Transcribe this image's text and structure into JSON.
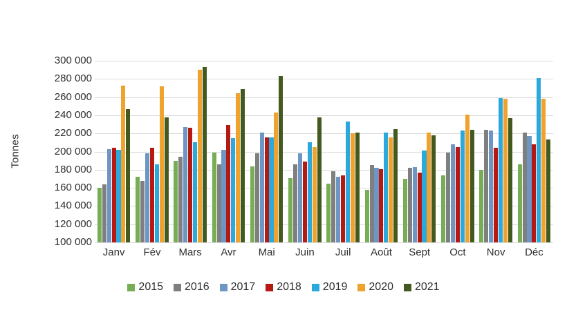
{
  "chart_data": {
    "type": "bar",
    "title": "",
    "ylabel": "Tonnes",
    "xlabel": "",
    "grid": true,
    "legend_position": "bottom",
    "ylim": [
      100000,
      300000
    ],
    "ytick_step": 20000,
    "yticks": [
      "300 000",
      "280 000",
      "260 000",
      "240 000",
      "220 000",
      "200 000",
      "180 000",
      "160 000",
      "140 000",
      "120 000",
      "100 000"
    ],
    "categories": [
      "Janv",
      "Fév",
      "Mars",
      "Avr",
      "Mai",
      "Juin",
      "Juil",
      "Août",
      "Sept",
      "Oct",
      "Nov",
      "Déc"
    ],
    "series": [
      {
        "name": "2015",
        "color": "#77AE55",
        "values": [
          160000,
          172000,
          190000,
          199000,
          184000,
          171000,
          165000,
          158000,
          170000,
          174000,
          180000,
          186000
        ]
      },
      {
        "name": "2016",
        "color": "#7F7F7F",
        "values": [
          164000,
          168000,
          194000,
          186000,
          198000,
          186000,
          178000,
          185000,
          182000,
          199000,
          224000,
          221000
        ]
      },
      {
        "name": "2017",
        "color": "#6E96C4",
        "values": [
          203000,
          198000,
          227000,
          202000,
          221000,
          198000,
          172000,
          182000,
          183000,
          208000,
          223000,
          217000
        ]
      },
      {
        "name": "2018",
        "color": "#B61812",
        "values": [
          204000,
          204000,
          226000,
          229000,
          216000,
          189000,
          174000,
          181000,
          177000,
          205000,
          204000,
          208000
        ]
      },
      {
        "name": "2019",
        "color": "#2BA9DF",
        "values": [
          202000,
          186000,
          210000,
          215000,
          216000,
          210000,
          233000,
          221000,
          201000,
          223000,
          259000,
          281000
        ]
      },
      {
        "name": "2020",
        "color": "#F0A22E",
        "values": [
          273000,
          272000,
          290000,
          264000,
          243000,
          205000,
          220000,
          216000,
          221000,
          241000,
          258000,
          258000
        ]
      },
      {
        "name": "2021",
        "color": "#44591E",
        "values": [
          247000,
          238000,
          293000,
          269000,
          283000,
          238000,
          221000,
          225000,
          218000,
          224000,
          237000,
          213000
        ]
      }
    ]
  }
}
